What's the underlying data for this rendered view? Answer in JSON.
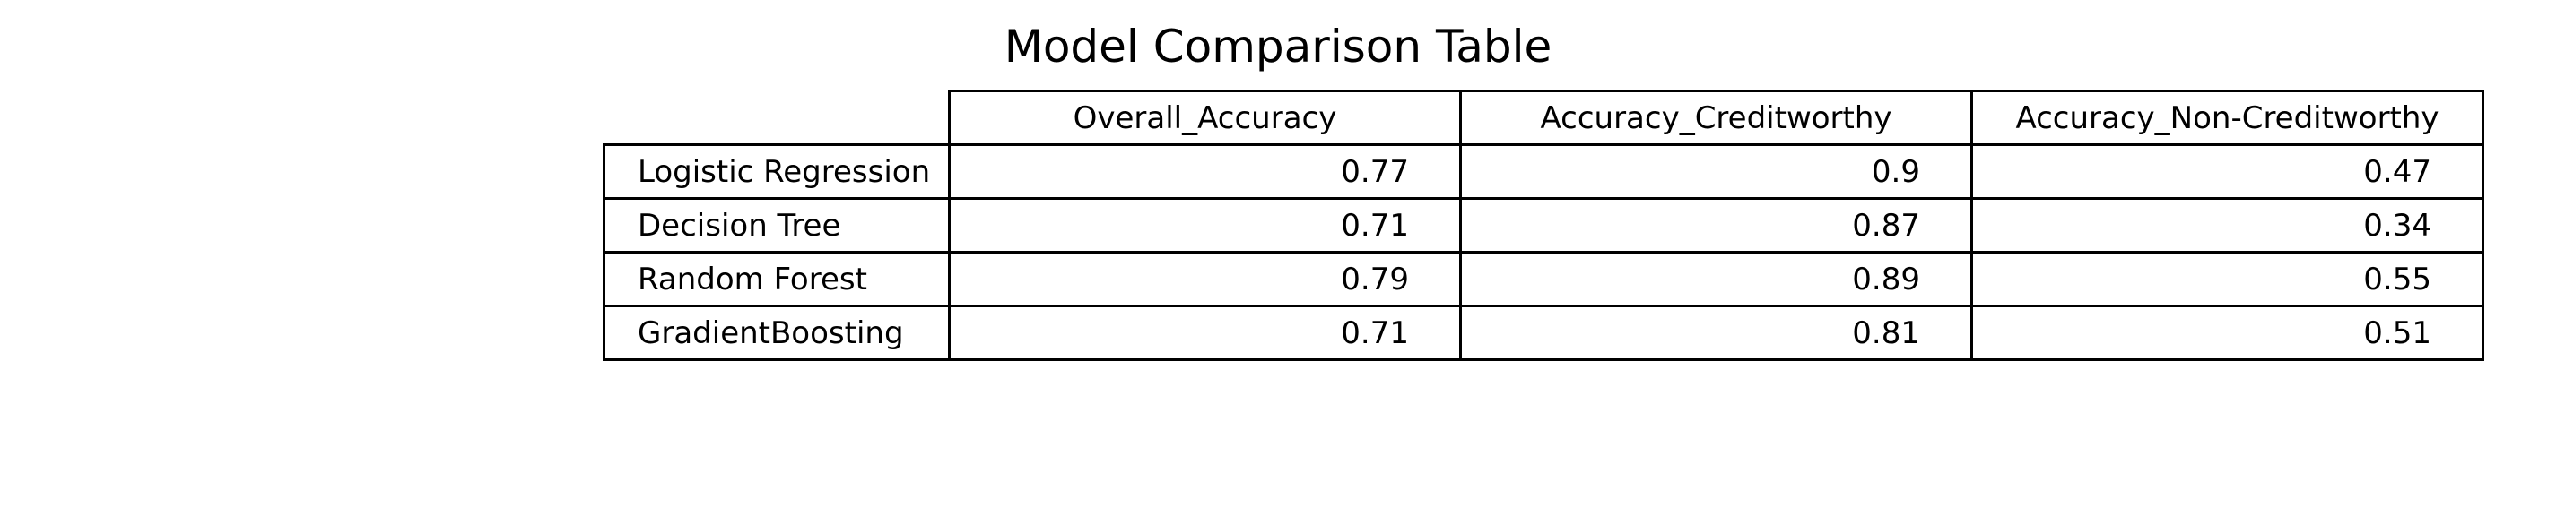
{
  "chart_data": {
    "type": "table",
    "title": "Model Comparison Table",
    "columns": [
      "Overall_Accuracy",
      "Accuracy_Creditworthy",
      "Accuracy_Non-Creditworthy"
    ],
    "rows": [
      {
        "label": "Logistic Regression",
        "values": [
          "0.77",
          "0.9",
          "0.47"
        ]
      },
      {
        "label": "Decision Tree",
        "values": [
          "0.71",
          "0.87",
          "0.34"
        ]
      },
      {
        "label": "Random Forest",
        "values": [
          "0.79",
          "0.89",
          "0.55"
        ]
      },
      {
        "label": "GradientBoosting",
        "values": [
          "0.71",
          "0.81",
          "0.51"
        ]
      }
    ]
  }
}
